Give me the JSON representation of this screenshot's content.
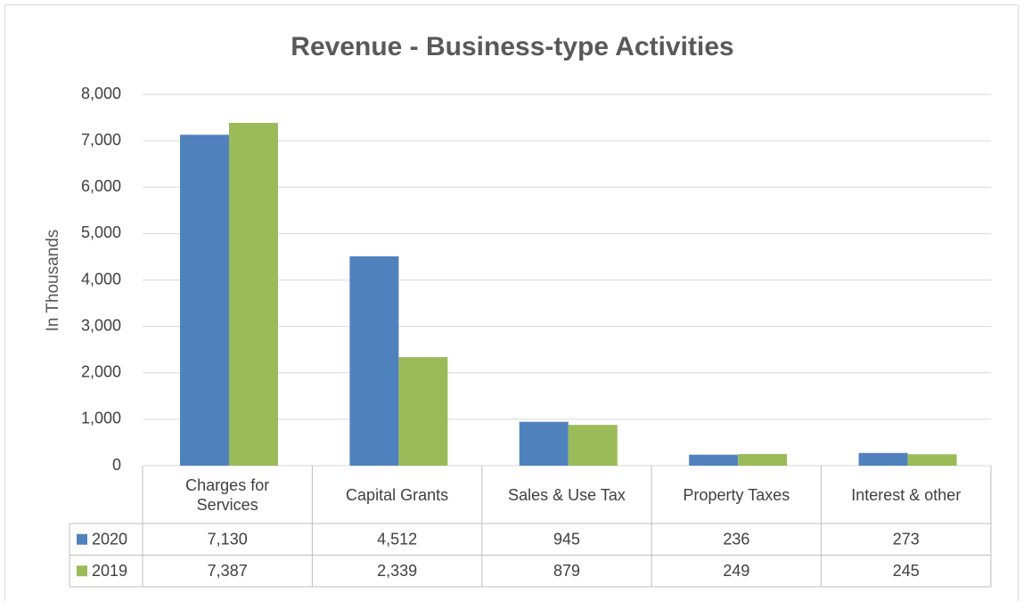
{
  "chart_data": {
    "type": "bar",
    "title": "Revenue - Business-type Activities",
    "y_label": "In Thousands",
    "categories": [
      "Charges for Services",
      "Capital Grants",
      "Sales & Use Tax",
      "Property Taxes",
      "Interest & other"
    ],
    "series": [
      {
        "name": "2020",
        "color": "#4f81bd",
        "values": [
          7130,
          4512,
          945,
          236,
          273
        ],
        "value_labels": [
          "7,130",
          "4,512",
          "945",
          "236",
          "273"
        ]
      },
      {
        "name": "2019",
        "color": "#9bbb59",
        "values": [
          7387,
          2339,
          879,
          249,
          245
        ],
        "value_labels": [
          "7,387",
          "2,339",
          "879",
          "249",
          "245"
        ]
      }
    ],
    "ylim": [
      0,
      8000
    ],
    "yticks": [
      0,
      {
        "value": 1000,
        "label": "1,000"
      },
      {
        "value": 2000,
        "label": "2,000"
      },
      {
        "value": 3000,
        "label": "3,000"
      },
      {
        "value": 4000,
        "label": "4,000"
      },
      {
        "value": 5000,
        "label": "5,000"
      },
      {
        "value": 6000,
        "label": "6,000"
      },
      {
        "value": 7000,
        "label": "7,000"
      },
      {
        "value": 8000,
        "label": "8,000"
      }
    ],
    "grid": true,
    "data_table": true
  }
}
